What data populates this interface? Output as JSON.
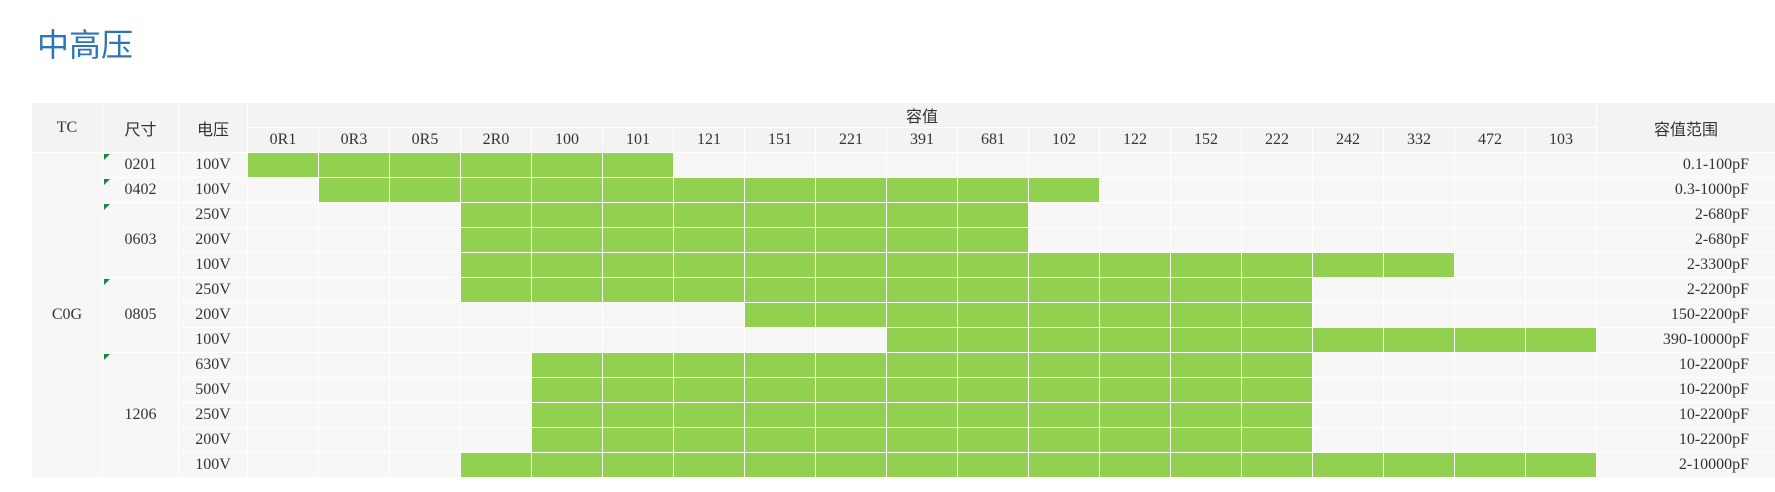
{
  "header": {
    "title": "中高压"
  },
  "table": {
    "headers": {
      "tc": "TC",
      "size": "尺寸",
      "voltage": "电压",
      "capacitance": "容值",
      "range": "容值范围"
    },
    "codes": [
      "0R1",
      "0R3",
      "0R5",
      "2R0",
      "100",
      "101",
      "121",
      "151",
      "221",
      "391",
      "681",
      "102",
      "122",
      "152",
      "222",
      "242",
      "332",
      "472",
      "103"
    ],
    "groups": [
      {
        "tc": "C0G",
        "sizes": [
          {
            "size": "0201",
            "rows": [
              {
                "voltage": "100V",
                "range": "0.1-100pF",
                "available": [
                  true,
                  true,
                  true,
                  true,
                  true,
                  true,
                  false,
                  false,
                  false,
                  false,
                  false,
                  false,
                  false,
                  false,
                  false,
                  false,
                  false,
                  false,
                  false
                ]
              }
            ]
          },
          {
            "size": "0402",
            "rows": [
              {
                "voltage": "100V",
                "range": "0.3-1000pF",
                "available": [
                  false,
                  true,
                  true,
                  true,
                  true,
                  true,
                  true,
                  true,
                  true,
                  true,
                  true,
                  true,
                  false,
                  false,
                  false,
                  false,
                  false,
                  false,
                  false
                ]
              }
            ]
          },
          {
            "size": "0603",
            "rows": [
              {
                "voltage": "250V",
                "range": "2-680pF",
                "available": [
                  false,
                  false,
                  false,
                  true,
                  true,
                  true,
                  true,
                  true,
                  true,
                  true,
                  true,
                  false,
                  false,
                  false,
                  false,
                  false,
                  false,
                  false,
                  false
                ]
              },
              {
                "voltage": "200V",
                "range": "2-680pF",
                "available": [
                  false,
                  false,
                  false,
                  true,
                  true,
                  true,
                  true,
                  true,
                  true,
                  true,
                  true,
                  false,
                  false,
                  false,
                  false,
                  false,
                  false,
                  false,
                  false
                ]
              },
              {
                "voltage": "100V",
                "range": "2-3300pF",
                "available": [
                  false,
                  false,
                  false,
                  true,
                  true,
                  true,
                  true,
                  true,
                  true,
                  true,
                  true,
                  true,
                  true,
                  true,
                  true,
                  true,
                  true,
                  false,
                  false
                ]
              }
            ]
          },
          {
            "size": "0805",
            "rows": [
              {
                "voltage": "250V",
                "range": "2-2200pF",
                "available": [
                  false,
                  false,
                  false,
                  true,
                  true,
                  true,
                  true,
                  true,
                  true,
                  true,
                  true,
                  true,
                  true,
                  true,
                  true,
                  false,
                  false,
                  false,
                  false
                ]
              },
              {
                "voltage": "200V",
                "range": "150-2200pF",
                "available": [
                  false,
                  false,
                  false,
                  false,
                  false,
                  false,
                  false,
                  true,
                  true,
                  true,
                  true,
                  true,
                  true,
                  true,
                  true,
                  false,
                  false,
                  false,
                  false
                ]
              },
              {
                "voltage": "100V",
                "range": "390-10000pF",
                "available": [
                  false,
                  false,
                  false,
                  false,
                  false,
                  false,
                  false,
                  false,
                  false,
                  true,
                  true,
                  true,
                  true,
                  true,
                  true,
                  true,
                  true,
                  true,
                  true
                ]
              }
            ]
          },
          {
            "size": "1206",
            "rows": [
              {
                "voltage": "630V",
                "range": "10-2200pF",
                "available": [
                  false,
                  false,
                  false,
                  false,
                  true,
                  true,
                  true,
                  true,
                  true,
                  true,
                  true,
                  true,
                  true,
                  true,
                  true,
                  false,
                  false,
                  false,
                  false
                ]
              },
              {
                "voltage": "500V",
                "range": "10-2200pF",
                "available": [
                  false,
                  false,
                  false,
                  false,
                  true,
                  true,
                  true,
                  true,
                  true,
                  true,
                  true,
                  true,
                  true,
                  true,
                  true,
                  false,
                  false,
                  false,
                  false
                ]
              },
              {
                "voltage": "250V",
                "range": "10-2200pF",
                "available": [
                  false,
                  false,
                  false,
                  false,
                  true,
                  true,
                  true,
                  true,
                  true,
                  true,
                  true,
                  true,
                  true,
                  true,
                  true,
                  false,
                  false,
                  false,
                  false
                ]
              },
              {
                "voltage": "200V",
                "range": "10-2200pF",
                "available": [
                  false,
                  false,
                  false,
                  false,
                  true,
                  true,
                  true,
                  true,
                  true,
                  true,
                  true,
                  true,
                  true,
                  true,
                  true,
                  false,
                  false,
                  false,
                  false
                ]
              },
              {
                "voltage": "100V",
                "range": "2-10000pF",
                "available": [
                  false,
                  false,
                  false,
                  true,
                  true,
                  true,
                  true,
                  true,
                  true,
                  true,
                  true,
                  true,
                  true,
                  true,
                  true,
                  true,
                  true,
                  true,
                  true
                ]
              }
            ]
          }
        ]
      }
    ]
  }
}
